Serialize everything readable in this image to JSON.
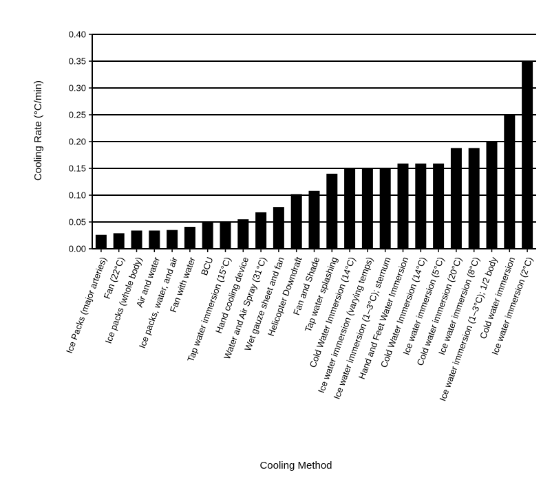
{
  "chart_data": {
    "type": "bar",
    "title": "",
    "xlabel": "Cooling Method",
    "ylabel": "Cooling Rate (°C/min)",
    "ylim": [
      0,
      0.4
    ],
    "yticks": [
      "0.00",
      "0.05",
      "0.10",
      "0.15",
      "0.20",
      "0.25",
      "0.30",
      "0.35",
      "0.40"
    ],
    "grid": "horizontal",
    "bar_color": "#000000",
    "categories": [
      "Ice Packs (major arteries)",
      "Fan (22°C)",
      "Ice packs (whole body)",
      "Air and water",
      "Ice packs, water, and air",
      "Fan with water",
      "BCU",
      "Tap water immersion (15°C)",
      "Hand cooling device",
      "Water and Air Spray (31°C)",
      "Wet gauze sheet and fan",
      "Helicopter Downdraft",
      "Fan and Shade",
      "Tap water splashing",
      "Cold Water Immersion (14°C)",
      "Ice water immersion (varying temps)",
      "Ice water immersion (1–3°C); sternum",
      "Hand and Feet Water Immersion",
      "Cold Water Immersion (14°C)",
      "Ice water immersion (5°C)",
      "Cold water immersion (20°C)",
      "Ice water immersion (8°C)",
      "Ice water immersion (1–3°C); 1/2 body",
      "Cold water immersion",
      "Ice water immersion (2°C)"
    ],
    "values": [
      0.026,
      0.029,
      0.034,
      0.034,
      0.035,
      0.041,
      0.05,
      0.05,
      0.055,
      0.068,
      0.078,
      0.102,
      0.108,
      0.14,
      0.15,
      0.15,
      0.15,
      0.159,
      0.159,
      0.159,
      0.188,
      0.188,
      0.2,
      0.25,
      0.35
    ]
  }
}
